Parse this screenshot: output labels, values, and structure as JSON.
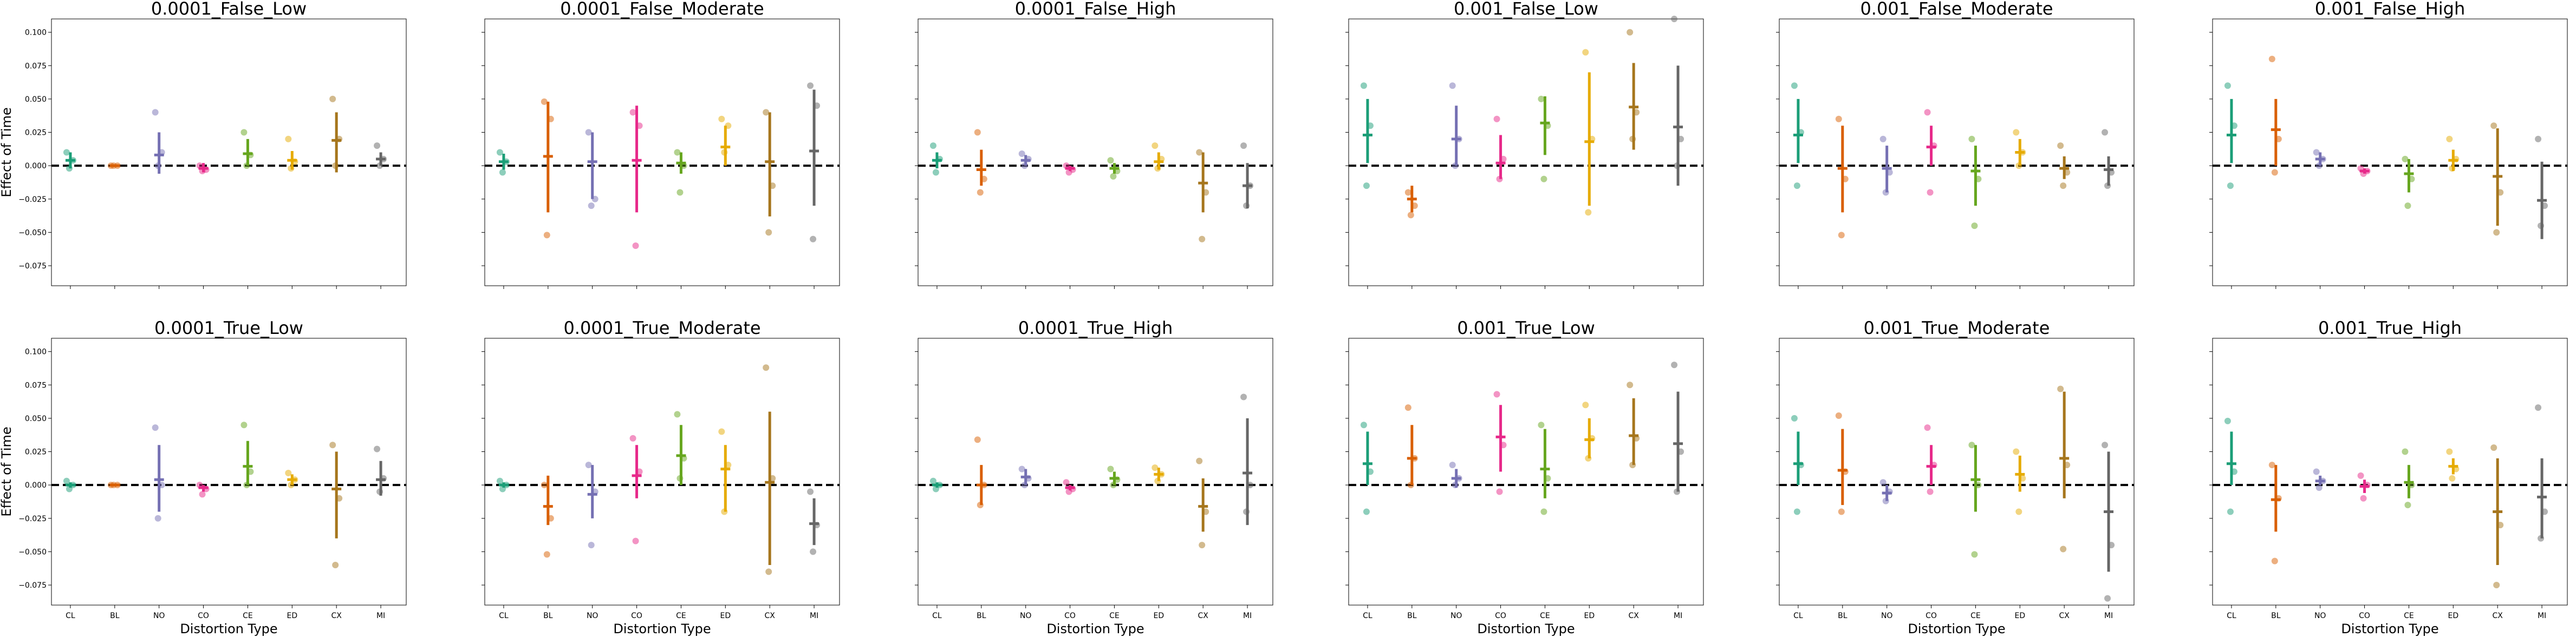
{
  "figure": {
    "ylabel": "Effect of Time",
    "xlabel": "Distortion Type",
    "ylim": [
      -0.09,
      0.11
    ],
    "yticks": [
      -0.075,
      -0.05,
      -0.025,
      0.0,
      0.025,
      0.05,
      0.075,
      0.1
    ],
    "ytick_labels": [
      "−0.075",
      "−0.050",
      "−0.025",
      "0.000",
      "0.025",
      "0.050",
      "0.075",
      "0.100"
    ],
    "categories": [
      "CL",
      "BL",
      "NO",
      "CO",
      "CE",
      "ED",
      "CX",
      "MI"
    ],
    "colors": {
      "CL": "#1b9e77",
      "BL": "#d95f02",
      "NO": "#7570b3",
      "CO": "#e7298a",
      "CE": "#66a61e",
      "ED": "#e6ab02",
      "CX": "#a6761d",
      "MI": "#666666"
    },
    "reference_line": 0.0
  },
  "chart_data": [
    {
      "type": "scatter",
      "title": "0.0001_False_Low",
      "categories": [
        "CL",
        "BL",
        "NO",
        "CO",
        "CE",
        "ED",
        "CX",
        "MI"
      ],
      "means": [
        0.004,
        0.0,
        0.008,
        -0.002,
        0.009,
        0.004,
        0.019,
        0.005
      ],
      "ci": [
        [
          -0.002,
          0.01
        ],
        [
          -0.001,
          0.001
        ],
        [
          -0.006,
          0.025
        ],
        [
          -0.005,
          0.002
        ],
        [
          0.0,
          0.02
        ],
        [
          -0.003,
          0.011
        ],
        [
          -0.005,
          0.04
        ],
        [
          0.0,
          0.01
        ]
      ],
      "points": [
        [
          0.01,
          0.004,
          -0.002
        ],
        [
          0.0,
          0.0,
          0.0
        ],
        [
          0.04,
          0.01,
          0.0
        ],
        [
          0.0,
          -0.003,
          -0.004
        ],
        [
          0.025,
          0.008,
          0.0
        ],
        [
          0.02,
          0.003,
          -0.002
        ],
        [
          0.05,
          0.02,
          0.0
        ],
        [
          0.015,
          0.005,
          0.0
        ]
      ]
    },
    {
      "type": "scatter",
      "title": "0.0001_False_Moderate",
      "categories": [
        "CL",
        "BL",
        "NO",
        "CO",
        "CE",
        "ED",
        "CX",
        "MI"
      ],
      "means": [
        0.003,
        0.007,
        0.003,
        0.004,
        0.002,
        0.014,
        0.003,
        0.011
      ],
      "ci": [
        [
          -0.003,
          0.009
        ],
        [
          -0.035,
          0.048
        ],
        [
          -0.025,
          0.025
        ],
        [
          -0.035,
          0.045
        ],
        [
          -0.006,
          0.01
        ],
        [
          0.0,
          0.03
        ],
        [
          -0.038,
          0.04
        ],
        [
          -0.03,
          0.057
        ]
      ],
      "points": [
        [
          0.01,
          0.003,
          -0.005
        ],
        [
          0.048,
          0.035,
          -0.052
        ],
        [
          0.025,
          -0.025,
          -0.03
        ],
        [
          0.04,
          0.03,
          -0.06
        ],
        [
          0.01,
          0.0,
          -0.02
        ],
        [
          0.035,
          0.03,
          0.01
        ],
        [
          0.04,
          -0.015,
          -0.05
        ],
        [
          0.06,
          0.045,
          -0.055
        ]
      ]
    },
    {
      "type": "scatter",
      "title": "0.0001_False_High",
      "categories": [
        "CL",
        "BL",
        "NO",
        "CO",
        "CE",
        "ED",
        "CX",
        "MI"
      ],
      "means": [
        0.004,
        -0.003,
        0.004,
        -0.002,
        -0.002,
        0.003,
        -0.013,
        -0.015
      ],
      "ci": [
        [
          -0.002,
          0.01
        ],
        [
          -0.015,
          0.012
        ],
        [
          0.0,
          0.008
        ],
        [
          -0.004,
          0.0
        ],
        [
          -0.006,
          0.002
        ],
        [
          -0.003,
          0.01
        ],
        [
          -0.035,
          0.01
        ],
        [
          -0.032,
          0.002
        ]
      ],
      "points": [
        [
          0.015,
          0.005,
          -0.005
        ],
        [
          0.025,
          -0.01,
          -0.02
        ],
        [
          0.009,
          0.005,
          0.0
        ],
        [
          0.0,
          -0.003,
          -0.005
        ],
        [
          0.004,
          -0.004,
          -0.008
        ],
        [
          0.015,
          0.005,
          -0.002
        ],
        [
          0.01,
          -0.02,
          -0.055
        ],
        [
          0.015,
          -0.015,
          -0.03
        ]
      ]
    },
    {
      "type": "scatter",
      "title": "0.001_False_Low",
      "categories": [
        "CL",
        "BL",
        "NO",
        "CO",
        "CE",
        "ED",
        "CX",
        "MI"
      ],
      "means": [
        0.023,
        -0.025,
        0.02,
        0.002,
        0.032,
        0.018,
        0.044,
        0.029
      ],
      "ci": [
        [
          0.002,
          0.05
        ],
        [
          -0.035,
          -0.015
        ],
        [
          0.0,
          0.045
        ],
        [
          -0.01,
          0.023
        ],
        [
          0.008,
          0.052
        ],
        [
          -0.03,
          0.07
        ],
        [
          0.012,
          0.077
        ],
        [
          -0.015,
          0.075
        ]
      ],
      "points": [
        [
          0.06,
          0.03,
          -0.015
        ],
        [
          -0.02,
          -0.03,
          -0.037
        ],
        [
          0.06,
          0.02,
          0.0
        ],
        [
          0.035,
          0.005,
          -0.01
        ],
        [
          0.05,
          0.03,
          -0.01
        ],
        [
          0.085,
          0.02,
          -0.035
        ],
        [
          0.1,
          0.04,
          0.02
        ],
        [
          0.11,
          0.02,
          0.0
        ]
      ]
    },
    {
      "type": "scatter",
      "title": "0.001_False_Moderate",
      "categories": [
        "CL",
        "BL",
        "NO",
        "CO",
        "CE",
        "ED",
        "CX",
        "MI"
      ],
      "means": [
        0.023,
        -0.002,
        -0.002,
        0.014,
        -0.004,
        0.01,
        -0.002,
        -0.003
      ],
      "ci": [
        [
          0.002,
          0.05
        ],
        [
          -0.035,
          0.03
        ],
        [
          -0.02,
          0.015
        ],
        [
          0.0,
          0.03
        ],
        [
          -0.03,
          0.015
        ],
        [
          0.0,
          0.02
        ],
        [
          -0.01,
          0.007
        ],
        [
          -0.015,
          0.007
        ]
      ],
      "points": [
        [
          0.06,
          0.025,
          -0.015
        ],
        [
          0.035,
          -0.01,
          -0.052
        ],
        [
          0.02,
          -0.005,
          -0.02
        ],
        [
          0.04,
          0.015,
          -0.02
        ],
        [
          0.02,
          -0.01,
          -0.045
        ],
        [
          0.025,
          0.01,
          0.0
        ],
        [
          0.015,
          -0.005,
          -0.015
        ],
        [
          0.025,
          -0.005,
          -0.015
        ]
      ]
    },
    {
      "type": "scatter",
      "title": "0.001_False_High",
      "categories": [
        "CL",
        "BL",
        "NO",
        "CO",
        "CE",
        "ED",
        "CX",
        "MI"
      ],
      "means": [
        0.023,
        0.027,
        0.005,
        -0.004,
        -0.006,
        0.004,
        -0.008,
        -0.026
      ],
      "ci": [
        [
          0.002,
          0.05
        ],
        [
          0.0,
          0.05
        ],
        [
          0.0,
          0.01
        ],
        [
          -0.006,
          -0.002
        ],
        [
          -0.02,
          0.005
        ],
        [
          -0.004,
          0.012
        ],
        [
          -0.045,
          0.028
        ],
        [
          -0.055,
          0.003
        ]
      ],
      "points": [
        [
          0.06,
          0.03,
          -0.015
        ],
        [
          0.08,
          0.02,
          -0.005
        ],
        [
          0.01,
          0.005,
          0.0
        ],
        [
          -0.002,
          -0.004,
          -0.006
        ],
        [
          0.005,
          -0.01,
          -0.03
        ],
        [
          0.02,
          0.005,
          -0.002
        ],
        [
          0.03,
          -0.02,
          -0.05
        ],
        [
          0.02,
          -0.03,
          -0.045
        ]
      ]
    },
    {
      "type": "scatter",
      "title": "0.0001_True_Low",
      "categories": [
        "CL",
        "BL",
        "NO",
        "CO",
        "CE",
        "ED",
        "CX",
        "MI"
      ],
      "means": [
        0.0,
        0.0,
        0.004,
        -0.002,
        0.014,
        0.004,
        -0.003,
        0.004
      ],
      "ci": [
        [
          -0.002,
          0.002
        ],
        [
          -0.001,
          0.001
        ],
        [
          -0.02,
          0.03
        ],
        [
          -0.005,
          0.0
        ],
        [
          0.0,
          0.033
        ],
        [
          0.0,
          0.008
        ],
        [
          -0.04,
          0.025
        ],
        [
          -0.008,
          0.018
        ]
      ],
      "points": [
        [
          0.003,
          0.0,
          -0.003
        ],
        [
          0.0,
          0.0,
          0.0
        ],
        [
          0.043,
          0.0,
          -0.025
        ],
        [
          0.0,
          -0.003,
          -0.007
        ],
        [
          0.045,
          0.01,
          0.0
        ],
        [
          0.009,
          0.004,
          0.0
        ],
        [
          0.03,
          -0.01,
          -0.06
        ],
        [
          0.027,
          0.005,
          -0.005
        ]
      ]
    },
    {
      "type": "scatter",
      "title": "0.0001_True_Moderate",
      "categories": [
        "CL",
        "BL",
        "NO",
        "CO",
        "CE",
        "ED",
        "CX",
        "MI"
      ],
      "means": [
        0.0,
        -0.016,
        -0.007,
        0.007,
        0.022,
        0.012,
        0.002,
        -0.029
      ],
      "ci": [
        [
          -0.002,
          0.002
        ],
        [
          -0.03,
          0.007
        ],
        [
          -0.025,
          0.015
        ],
        [
          -0.01,
          0.03
        ],
        [
          0.0,
          0.045
        ],
        [
          -0.02,
          0.03
        ],
        [
          -0.06,
          0.055
        ],
        [
          -0.045,
          -0.01
        ]
      ],
      "points": [
        [
          0.003,
          0.0,
          -0.003
        ],
        [
          0.0,
          -0.025,
          -0.052
        ],
        [
          0.015,
          -0.005,
          -0.045
        ],
        [
          0.035,
          0.01,
          -0.042
        ],
        [
          0.053,
          0.02,
          0.005
        ],
        [
          0.04,
          0.015,
          -0.02
        ],
        [
          0.088,
          0.005,
          -0.065
        ],
        [
          -0.005,
          -0.03,
          -0.05
        ]
      ]
    },
    {
      "type": "scatter",
      "title": "0.0001_True_High",
      "categories": [
        "CL",
        "BL",
        "NO",
        "CO",
        "CE",
        "ED",
        "CX",
        "MI"
      ],
      "means": [
        0.0,
        0.0,
        0.006,
        -0.002,
        0.005,
        0.008,
        -0.016,
        0.009
      ],
      "ci": [
        [
          -0.002,
          0.002
        ],
        [
          -0.015,
          0.015
        ],
        [
          0.0,
          0.012
        ],
        [
          -0.004,
          0.0
        ],
        [
          0.0,
          0.01
        ],
        [
          0.003,
          0.013
        ],
        [
          -0.035,
          0.005
        ],
        [
          -0.03,
          0.05
        ]
      ],
      "points": [
        [
          0.003,
          0.0,
          -0.003
        ],
        [
          0.034,
          0.0,
          -0.015
        ],
        [
          0.012,
          0.005,
          0.0
        ],
        [
          0.002,
          -0.003,
          -0.005
        ],
        [
          0.012,
          0.004,
          0.0
        ],
        [
          0.013,
          0.008,
          0.003
        ],
        [
          0.018,
          -0.02,
          -0.045
        ],
        [
          0.066,
          0.0,
          -0.02
        ]
      ]
    },
    {
      "type": "scatter",
      "title": "0.001_True_Low",
      "categories": [
        "CL",
        "BL",
        "NO",
        "CO",
        "CE",
        "ED",
        "CX",
        "MI"
      ],
      "means": [
        0.016,
        0.02,
        0.005,
        0.036,
        0.012,
        0.034,
        0.037,
        0.031
      ],
      "ci": [
        [
          0.0,
          0.04
        ],
        [
          0.0,
          0.045
        ],
        [
          -0.002,
          0.012
        ],
        [
          0.01,
          0.06
        ],
        [
          -0.01,
          0.042
        ],
        [
          0.02,
          0.05
        ],
        [
          0.015,
          0.065
        ],
        [
          -0.005,
          0.07
        ]
      ],
      "points": [
        [
          0.045,
          0.01,
          -0.02
        ],
        [
          0.058,
          0.02,
          0.0
        ],
        [
          0.015,
          0.005,
          0.0
        ],
        [
          0.068,
          0.03,
          -0.005
        ],
        [
          0.045,
          0.005,
          -0.02
        ],
        [
          0.06,
          0.035,
          0.02
        ],
        [
          0.075,
          0.035,
          0.015
        ],
        [
          0.09,
          0.025,
          -0.005
        ]
      ]
    },
    {
      "type": "scatter",
      "title": "0.001_True_Moderate",
      "categories": [
        "CL",
        "BL",
        "NO",
        "CO",
        "CE",
        "ED",
        "CX",
        "MI"
      ],
      "means": [
        0.016,
        0.011,
        -0.006,
        0.014,
        0.004,
        0.008,
        0.02,
        -0.02
      ],
      "ci": [
        [
          0.0,
          0.04
        ],
        [
          -0.015,
          0.042
        ],
        [
          -0.012,
          0.0
        ],
        [
          0.0,
          0.03
        ],
        [
          -0.02,
          0.03
        ],
        [
          -0.005,
          0.022
        ],
        [
          -0.01,
          0.07
        ],
        [
          -0.065,
          0.025
        ]
      ],
      "points": [
        [
          0.05,
          0.015,
          -0.02
        ],
        [
          0.052,
          0.01,
          -0.02
        ],
        [
          0.002,
          -0.005,
          -0.012
        ],
        [
          0.043,
          0.015,
          -0.005
        ],
        [
          0.03,
          0.0,
          -0.052
        ],
        [
          0.025,
          0.005,
          -0.02
        ],
        [
          0.072,
          0.015,
          -0.048
        ],
        [
          0.03,
          -0.045,
          -0.085
        ]
      ]
    },
    {
      "type": "scatter",
      "title": "0.001_True_High",
      "categories": [
        "CL",
        "BL",
        "NO",
        "CO",
        "CE",
        "ED",
        "CX",
        "MI"
      ],
      "means": [
        0.016,
        -0.011,
        0.003,
        -0.001,
        0.002,
        0.014,
        -0.02,
        -0.009
      ],
      "ci": [
        [
          0.0,
          0.04
        ],
        [
          -0.035,
          0.015
        ],
        [
          0.0,
          0.007
        ],
        [
          -0.006,
          0.004
        ],
        [
          -0.01,
          0.015
        ],
        [
          0.008,
          0.02
        ],
        [
          -0.06,
          0.02
        ],
        [
          -0.04,
          0.02
        ]
      ],
      "points": [
        [
          0.048,
          0.01,
          -0.02
        ],
        [
          0.015,
          -0.01,
          -0.057
        ],
        [
          0.01,
          0.003,
          -0.002
        ],
        [
          0.007,
          0.0,
          -0.01
        ],
        [
          0.025,
          0.0,
          -0.015
        ],
        [
          0.025,
          0.012,
          0.005
        ],
        [
          0.028,
          -0.03,
          -0.075
        ],
        [
          0.058,
          -0.02,
          -0.04
        ]
      ]
    }
  ]
}
